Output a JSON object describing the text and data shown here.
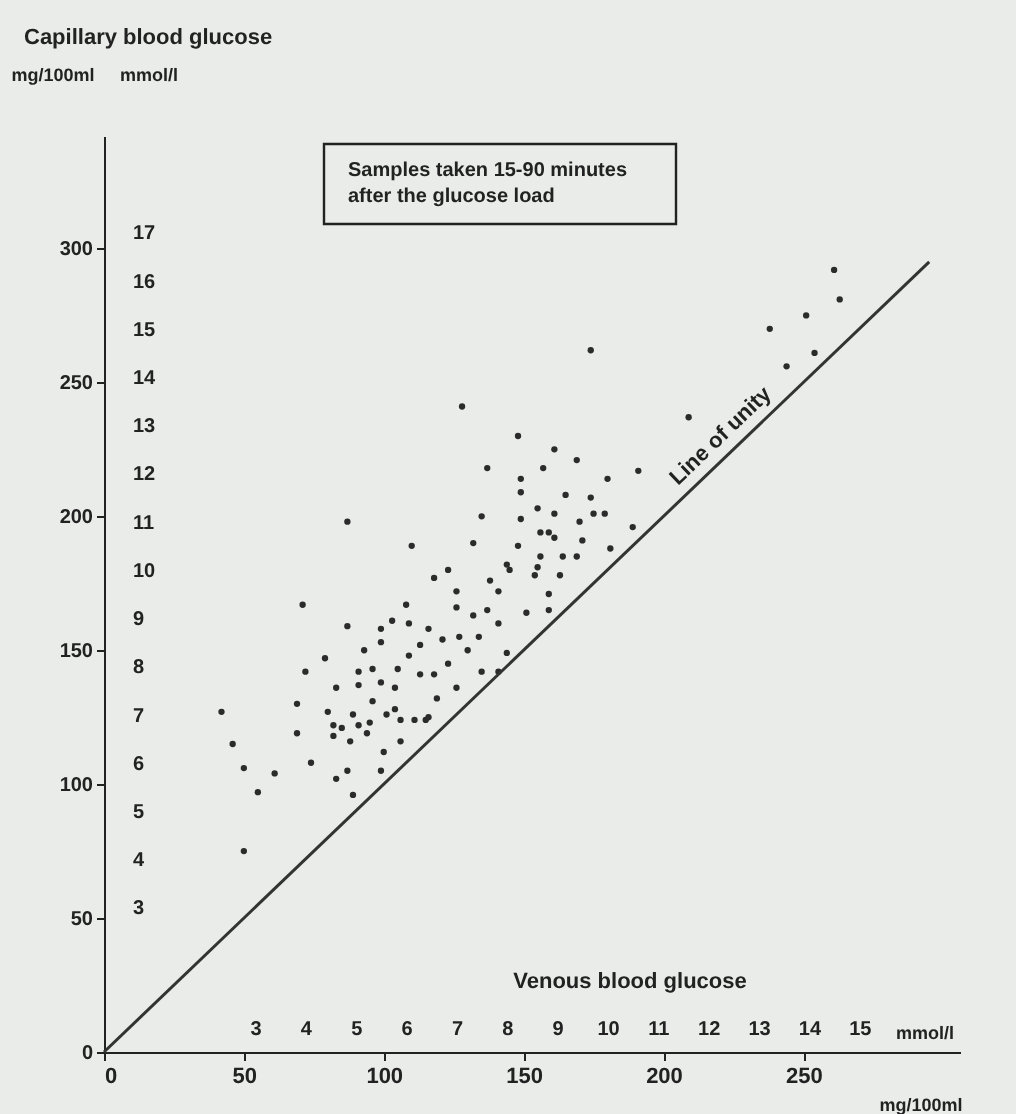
{
  "chart_data": {
    "type": "scatter",
    "title": "Capillary blood glucose",
    "xlabel": "mg/100ml",
    "x2label": "mmol/l",
    "ylabel": "mg/100ml",
    "y2label": "mmol/l",
    "xlim": [
      0,
      306
    ],
    "xticks": [
      0,
      50,
      100,
      150,
      200,
      250
    ],
    "x2lim": [
      0,
      17
    ],
    "x2ticks": [
      3,
      4,
      5,
      6,
      7,
      8,
      9,
      10,
      11,
      12,
      13,
      14,
      15
    ],
    "ylim": [
      0,
      342
    ],
    "yticks": [
      0,
      50,
      100,
      150,
      200,
      250,
      300
    ],
    "y2lim": [
      0,
      19
    ],
    "y2ticks": [
      3,
      4,
      5,
      6,
      7,
      8,
      9,
      10,
      11,
      12,
      13,
      14,
      15,
      16,
      17
    ],
    "marker": "circle",
    "line_style": "solid",
    "annotations": [
      "Venous blood glucose",
      "Samples taken 15-90 minutes after the glucose load",
      {
        "text": "Line of unity",
        "x": 225,
        "y": 225
      }
    ],
    "series": [
      {
        "color": "#2b2b2b",
        "x": [
          128,
          148,
          137,
          87,
          71,
          87,
          72,
          79,
          42,
          46,
          50,
          55,
          61,
          69,
          69,
          74,
          80,
          82,
          83,
          83,
          89,
          91,
          93,
          99,
          103,
          108,
          110,
          118,
          123,
          126,
          132,
          135,
          149,
          149,
          157,
          155,
          159,
          159,
          151,
          144,
          141,
          135,
          126,
          119,
          115,
          111,
          106,
          106,
          100,
          99,
          94,
          91,
          88,
          85,
          89,
          96,
          99,
          104,
          105,
          109,
          113,
          116,
          121,
          123,
          127,
          130,
          132,
          137,
          141,
          145,
          141,
          134,
          113,
          118,
          101,
          95,
          99,
          109,
          126,
          154,
          156,
          159,
          161,
          174,
          161,
          169,
          149,
          161,
          165,
          174,
          175,
          180,
          179,
          170,
          156,
          164,
          169,
          171,
          181,
          189,
          191,
          209,
          238,
          251,
          261,
          263,
          244,
          254,
          148,
          155,
          163,
          138,
          144,
          50,
          87,
          104,
          116,
          91,
          96,
          82
        ],
        "values": [
          241,
          230,
          218,
          198,
          167,
          159,
          142,
          147,
          127,
          115,
          106,
          97,
          104,
          130,
          119,
          108,
          127,
          118,
          136,
          102,
          96,
          142,
          150,
          158,
          161,
          167,
          189,
          177,
          180,
          172,
          190,
          200,
          209,
          214,
          218,
          203,
          194,
          171,
          164,
          149,
          142,
          142,
          136,
          132,
          124,
          124,
          124,
          116,
          112,
          105,
          119,
          122,
          116,
          121,
          126,
          131,
          138,
          136,
          143,
          148,
          152,
          158,
          154,
          145,
          155,
          150,
          163,
          165,
          172,
          180,
          160,
          155,
          141,
          141,
          126,
          123,
          153,
          160,
          166,
          178,
          185,
          165,
          192,
          262,
          225,
          221,
          199,
          201,
          208,
          207,
          201,
          214,
          201,
          198,
          194,
          185,
          185,
          191,
          188,
          196,
          217,
          237,
          270,
          275,
          292,
          281,
          256,
          261,
          189,
          181,
          178,
          176,
          182,
          75,
          105,
          128,
          125,
          137,
          143,
          122
        ]
      },
      {
        "type": "line",
        "marker": "none",
        "color": "#333333",
        "x": [
          0,
          295
        ],
        "values": [
          0,
          295
        ]
      }
    ]
  }
}
